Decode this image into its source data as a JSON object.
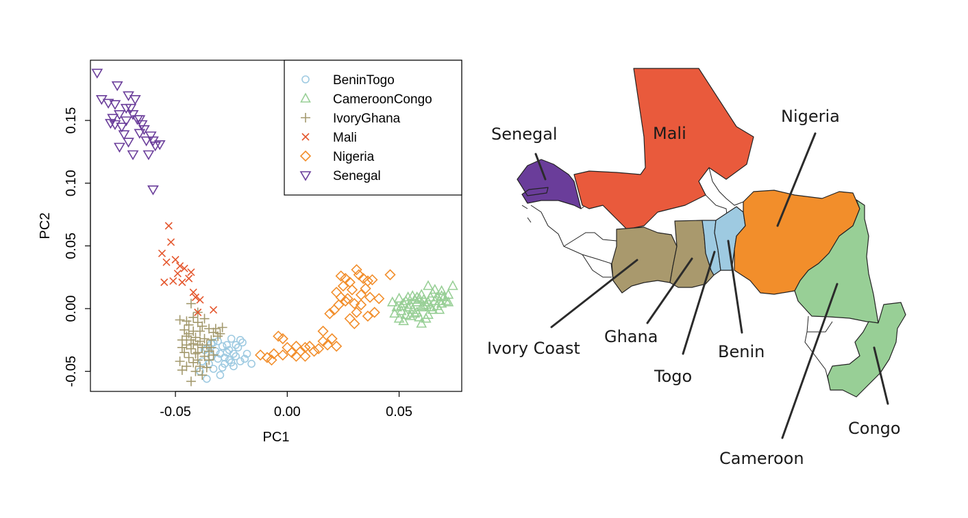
{
  "chart_data": {
    "type": "scatter",
    "xlabel": "PC1",
    "ylabel": "PC2",
    "xlim": [
      -0.088,
      0.078
    ],
    "ylim": [
      -0.066,
      0.198
    ],
    "x_ticks": [
      "-0.05",
      "0.00",
      "0.05"
    ],
    "x_tick_values": [
      -0.05,
      0.0,
      0.05
    ],
    "y_ticks": [
      "-0.05",
      "0.00",
      "0.05",
      "0.10",
      "0.15"
    ],
    "y_tick_values": [
      -0.05,
      0.0,
      0.05,
      0.1,
      0.15
    ],
    "legend_position": "top-right",
    "series": [
      {
        "name": "BeninTogo",
        "marker": "circle",
        "color": "#9ecae1",
        "points": [
          [
            -0.036,
            -0.032
          ],
          [
            -0.034,
            -0.028
          ],
          [
            -0.031,
            -0.026
          ],
          [
            -0.029,
            -0.03
          ],
          [
            -0.027,
            -0.035
          ],
          [
            -0.025,
            -0.024
          ],
          [
            -0.023,
            -0.038
          ],
          [
            -0.021,
            -0.042
          ],
          [
            -0.024,
            -0.046
          ],
          [
            -0.028,
            -0.044
          ],
          [
            -0.031,
            -0.04
          ],
          [
            -0.033,
            -0.048
          ],
          [
            -0.03,
            -0.053
          ],
          [
            -0.036,
            -0.056
          ],
          [
            -0.026,
            -0.033
          ],
          [
            -0.022,
            -0.031
          ],
          [
            -0.019,
            -0.04
          ],
          [
            -0.016,
            -0.044
          ],
          [
            -0.02,
            -0.027
          ],
          [
            -0.034,
            -0.038
          ],
          [
            -0.038,
            -0.042
          ],
          [
            -0.032,
            -0.034
          ],
          [
            -0.028,
            -0.039
          ],
          [
            -0.025,
            -0.043
          ],
          [
            -0.021,
            -0.025
          ],
          [
            -0.035,
            -0.044
          ],
          [
            -0.029,
            -0.047
          ],
          [
            -0.039,
            -0.05
          ],
          [
            -0.026,
            -0.041
          ],
          [
            -0.023,
            -0.029
          ],
          [
            -0.018,
            -0.036
          ],
          [
            -0.033,
            -0.027
          ],
          [
            -0.037,
            -0.033
          ],
          [
            -0.03,
            -0.036
          ],
          [
            -0.027,
            -0.029
          ],
          [
            -0.024,
            -0.036
          ]
        ]
      },
      {
        "name": "CameroonCongo",
        "marker": "triangle-up",
        "color": "#98cf96",
        "points": [
          [
            0.047,
            0.005
          ],
          [
            0.049,
            0.001
          ],
          [
            0.051,
            -0.002
          ],
          [
            0.053,
            0.006
          ],
          [
            0.055,
            0.003
          ],
          [
            0.057,
            -0.004
          ],
          [
            0.059,
            0.008
          ],
          [
            0.061,
            0.002
          ],
          [
            0.063,
            0.005
          ],
          [
            0.065,
            -0.001
          ],
          [
            0.067,
            0.009
          ],
          [
            0.069,
            0.004
          ],
          [
            0.071,
            0.006
          ],
          [
            0.074,
            0.018
          ],
          [
            0.063,
            0.018
          ],
          [
            0.066,
            0.015
          ],
          [
            0.069,
            0.014
          ],
          [
            0.048,
            -0.004
          ],
          [
            0.05,
            -0.008
          ],
          [
            0.052,
            -0.01
          ],
          [
            0.055,
            -0.006
          ],
          [
            0.058,
            -0.003
          ],
          [
            0.06,
            -0.012
          ],
          [
            0.062,
            -0.008
          ],
          [
            0.064,
            0.001
          ],
          [
            0.068,
            -0.001
          ],
          [
            0.056,
            0.01
          ],
          [
            0.06,
            0.011
          ],
          [
            0.054,
            0.001
          ],
          [
            0.058,
            0.005
          ],
          [
            0.061,
            0.007
          ],
          [
            0.064,
            0.009
          ],
          [
            0.052,
            0.004
          ],
          [
            0.056,
            -0.001
          ],
          [
            0.059,
            -0.007
          ],
          [
            0.062,
            0.003
          ],
          [
            0.065,
            0.012
          ],
          [
            0.067,
            0.002
          ],
          [
            0.07,
            0.009
          ],
          [
            0.072,
            0.005
          ],
          [
            0.057,
            0.007
          ],
          [
            0.05,
            0.008
          ],
          [
            0.053,
            -0.005
          ],
          [
            0.06,
            0.001
          ],
          [
            0.066,
            0.006
          ],
          [
            0.063,
            -0.005
          ],
          [
            0.058,
            0.009
          ],
          [
            0.054,
            0.009
          ],
          [
            0.051,
            0.002
          ],
          [
            0.069,
            0.01
          ],
          [
            0.072,
            0.011
          ],
          [
            0.068,
            0.006
          ]
        ]
      },
      {
        "name": "IvoryGhana",
        "marker": "plus",
        "color": "#a3996d",
        "points": [
          [
            -0.048,
            -0.009
          ],
          [
            -0.045,
            -0.01
          ],
          [
            -0.042,
            -0.007
          ],
          [
            -0.04,
            -0.011
          ],
          [
            -0.038,
            -0.014
          ],
          [
            -0.035,
            -0.016
          ],
          [
            -0.033,
            -0.019
          ],
          [
            -0.031,
            -0.022
          ],
          [
            -0.046,
            -0.017
          ],
          [
            -0.044,
            -0.02
          ],
          [
            -0.041,
            -0.023
          ],
          [
            -0.039,
            -0.026
          ],
          [
            -0.036,
            -0.029
          ],
          [
            -0.034,
            -0.031
          ],
          [
            -0.047,
            -0.025
          ],
          [
            -0.045,
            -0.029
          ],
          [
            -0.043,
            -0.032
          ],
          [
            -0.04,
            -0.035
          ],
          [
            -0.037,
            -0.038
          ],
          [
            -0.046,
            -0.035
          ],
          [
            -0.044,
            -0.039
          ],
          [
            -0.042,
            -0.043
          ],
          [
            -0.039,
            -0.046
          ],
          [
            -0.041,
            -0.05
          ],
          [
            -0.043,
            -0.058
          ],
          [
            -0.038,
            -0.053
          ],
          [
            -0.035,
            -0.041
          ],
          [
            -0.033,
            -0.037
          ],
          [
            -0.048,
            -0.042
          ],
          [
            -0.045,
            -0.046
          ],
          [
            -0.047,
            -0.031
          ],
          [
            -0.042,
            -0.028
          ],
          [
            -0.039,
            -0.018
          ],
          [
            -0.037,
            -0.024
          ],
          [
            -0.034,
            -0.025
          ],
          [
            -0.032,
            -0.016
          ],
          [
            -0.044,
            -0.013
          ],
          [
            -0.043,
            0.004
          ],
          [
            -0.04,
            -0.003
          ],
          [
            -0.037,
            -0.008
          ],
          [
            -0.03,
            -0.02
          ],
          [
            -0.029,
            -0.015
          ],
          [
            -0.036,
            -0.047
          ],
          [
            -0.04,
            -0.041
          ],
          [
            -0.045,
            -0.022
          ],
          [
            -0.038,
            -0.031
          ],
          [
            -0.041,
            -0.036
          ],
          [
            -0.043,
            -0.025
          ],
          [
            -0.035,
            -0.034
          ],
          [
            -0.047,
            -0.049
          ],
          [
            -0.042,
            -0.018
          ],
          [
            -0.04,
            -0.029
          ]
        ]
      },
      {
        "name": "Mali",
        "marker": "x",
        "color": "#e4572e",
        "points": [
          [
            -0.053,
            0.066
          ],
          [
            -0.052,
            0.053
          ],
          [
            -0.056,
            0.044
          ],
          [
            -0.05,
            0.039
          ],
          [
            -0.054,
            0.037
          ],
          [
            -0.048,
            0.034
          ],
          [
            -0.046,
            0.032
          ],
          [
            -0.043,
            0.029
          ],
          [
            -0.049,
            0.028
          ],
          [
            -0.051,
            0.022
          ],
          [
            -0.047,
            0.021
          ],
          [
            -0.055,
            0.021
          ],
          [
            -0.044,
            0.024
          ],
          [
            -0.042,
            0.013
          ],
          [
            -0.041,
            0.009
          ],
          [
            -0.039,
            0.007
          ],
          [
            -0.033,
            -0.001
          ],
          [
            -0.04,
            -0.003
          ]
        ]
      },
      {
        "name": "Nigeria",
        "marker": "diamond",
        "color": "#f28e2b",
        "points": [
          [
            -0.012,
            -0.037
          ],
          [
            -0.009,
            -0.039
          ],
          [
            -0.006,
            -0.036
          ],
          [
            -0.004,
            -0.022
          ],
          [
            -0.002,
            -0.024
          ],
          [
            0.0,
            -0.031
          ],
          [
            0.002,
            -0.035
          ],
          [
            0.004,
            -0.038
          ],
          [
            0.006,
            -0.034
          ],
          [
            0.008,
            -0.031
          ],
          [
            0.01,
            -0.03
          ],
          [
            0.012,
            -0.034
          ],
          [
            0.014,
            -0.032
          ],
          [
            0.016,
            -0.026
          ],
          [
            0.018,
            -0.029
          ],
          [
            0.02,
            -0.024
          ],
          [
            0.022,
            -0.03
          ],
          [
            0.016,
            -0.018
          ],
          [
            0.019,
            -0.004
          ],
          [
            0.021,
            -0.001
          ],
          [
            0.023,
            0.003
          ],
          [
            0.024,
            0.009
          ],
          [
            0.022,
            0.013
          ],
          [
            0.025,
            0.018
          ],
          [
            0.024,
            0.026
          ],
          [
            0.026,
            0.024
          ],
          [
            0.028,
            0.021
          ],
          [
            0.029,
            0.015
          ],
          [
            0.027,
            0.008
          ],
          [
            0.03,
            0.004
          ],
          [
            0.031,
            -0.003
          ],
          [
            0.033,
            0.011
          ],
          [
            0.032,
            0.027
          ],
          [
            0.031,
            0.031
          ],
          [
            0.034,
            0.024
          ],
          [
            0.035,
            0.016
          ],
          [
            0.036,
            0.022
          ],
          [
            0.037,
            0.009
          ],
          [
            0.038,
            0.023
          ],
          [
            0.039,
            -0.003
          ],
          [
            0.041,
            0.008
          ],
          [
            0.046,
            0.027
          ],
          [
            0.028,
            -0.008
          ],
          [
            0.03,
            -0.012
          ],
          [
            -0.002,
            -0.037
          ],
          [
            0.004,
            -0.03
          ],
          [
            0.008,
            -0.038
          ],
          [
            0.026,
            0.006
          ],
          [
            0.033,
            0.003
          ],
          [
            0.036,
            -0.006
          ],
          [
            -0.007,
            -0.041
          ]
        ]
      },
      {
        "name": "Senegal",
        "marker": "triangle-down",
        "color": "#6a3d9a",
        "points": [
          [
            -0.085,
            0.188
          ],
          [
            -0.083,
            0.167
          ],
          [
            -0.08,
            0.164
          ],
          [
            -0.077,
            0.163
          ],
          [
            -0.076,
            0.178
          ],
          [
            -0.078,
            0.152
          ],
          [
            -0.077,
            0.147
          ],
          [
            -0.075,
            0.155
          ],
          [
            -0.074,
            0.145
          ],
          [
            -0.073,
            0.139
          ],
          [
            -0.072,
            0.16
          ],
          [
            -0.071,
            0.17
          ],
          [
            -0.07,
            0.16
          ],
          [
            -0.069,
            0.155
          ],
          [
            -0.068,
            0.167
          ],
          [
            -0.067,
            0.151
          ],
          [
            -0.066,
            0.14
          ],
          [
            -0.065,
            0.147
          ],
          [
            -0.064,
            0.143
          ],
          [
            -0.063,
            0.134
          ],
          [
            -0.061,
            0.138
          ],
          [
            -0.06,
            0.134
          ],
          [
            -0.059,
            0.13
          ],
          [
            -0.057,
            0.131
          ],
          [
            -0.069,
            0.123
          ],
          [
            -0.071,
            0.133
          ],
          [
            -0.075,
            0.129
          ],
          [
            -0.062,
            0.123
          ],
          [
            -0.06,
            0.095
          ],
          [
            -0.066,
            0.151
          ],
          [
            -0.072,
            0.15
          ],
          [
            -0.079,
            0.148
          ]
        ]
      }
    ]
  },
  "map": {
    "countries": [
      {
        "id": "senegal",
        "label": "Senegal",
        "color": "#6a3d9a"
      },
      {
        "id": "mali",
        "label": "Mali",
        "color": "#e95a3c"
      },
      {
        "id": "nigeria",
        "label": "Nigeria",
        "color": "#f28e2b"
      },
      {
        "id": "ivory-coast",
        "label": "Ivory Coast",
        "color": "#a9996d"
      },
      {
        "id": "ghana",
        "label": "Ghana",
        "color": "#a9996d"
      },
      {
        "id": "togo",
        "label": "Togo",
        "color": "#9ecae1"
      },
      {
        "id": "benin",
        "label": "Benin",
        "color": "#9ecae1"
      },
      {
        "id": "cameroon",
        "label": "Cameroon",
        "color": "#98cf96"
      },
      {
        "id": "congo",
        "label": "Congo",
        "color": "#98cf96"
      }
    ]
  }
}
